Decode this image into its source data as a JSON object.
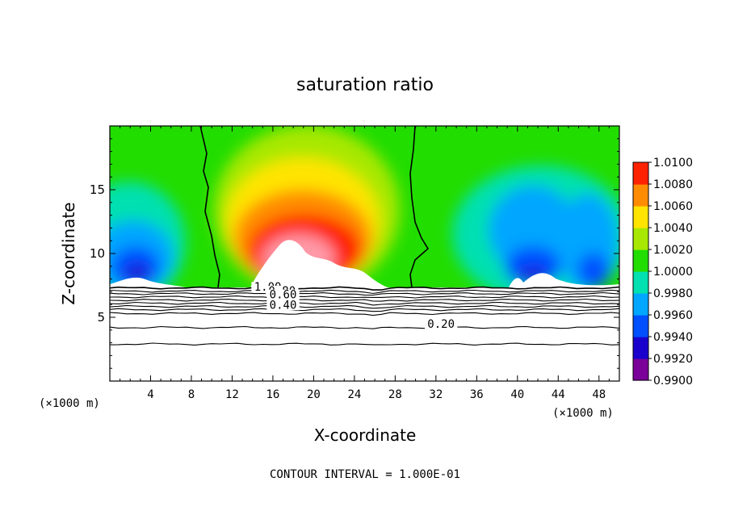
{
  "chart_data": {
    "type": "heatmap",
    "title": "saturation ratio",
    "xlabel": "X-coordinate",
    "ylabel": "Z-coordinate",
    "x_unit_label": "(×1000 m)",
    "y_unit_label": "(×1000 m)",
    "xlim": [
      0,
      50
    ],
    "ylim": [
      0,
      20
    ],
    "x_ticks": [
      4,
      8,
      12,
      16,
      20,
      24,
      28,
      32,
      36,
      40,
      44,
      48
    ],
    "y_ticks": [
      5,
      10,
      15
    ],
    "colorbar": {
      "min": 0.99,
      "max": 1.01,
      "tick_labels": [
        "0.9900",
        "0.9920",
        "0.9940",
        "0.9960",
        "0.9980",
        "1.0000",
        "1.0020",
        "1.0040",
        "1.0060",
        "1.0080",
        "1.0100"
      ],
      "colors": [
        "#7a0099",
        "#1a00cc",
        "#0050ff",
        "#00a6ff",
        "#00e0b0",
        "#22dd00",
        "#a8e800",
        "#ffe400",
        "#ff8c00",
        "#ff2200",
        "#ff9aa8"
      ]
    },
    "contour_interval": "CONTOUR INTERVAL = 1.000E-01",
    "contour_labels": [
      {
        "label": "1.00",
        "x": 15.5,
        "z": 7.2
      },
      {
        "label": "0.80",
        "x": 16.9,
        "z": 6.9
      },
      {
        "label": "0.60",
        "x": 17.0,
        "z": 6.6
      },
      {
        "label": "0.40",
        "x": 17.0,
        "z": 5.8
      },
      {
        "label": "0.20",
        "x": 32.5,
        "z": 4.3
      }
    ],
    "contour_levels": [
      0.2,
      0.4,
      0.6,
      0.8,
      1.0
    ],
    "features": {
      "cloud_base_z": 7.3,
      "unity_contour_left_x": 10.5,
      "unity_contour_right_x": 29.5,
      "supersaturated_core": {
        "x_range": [
          12,
          29
        ],
        "z_range": [
          7.3,
          16
        ],
        "peak_value": 1.01,
        "center_x": 20,
        "center_z": 12
      },
      "subsaturated_regions": [
        {
          "x_range": [
            0,
            8
          ],
          "z_center": 9.5,
          "min_value": 0.99
        },
        {
          "x_range": [
            33,
            50
          ],
          "z_center": 9.5,
          "min_value": 0.99
        }
      ]
    }
  },
  "colors": {
    "background": "#ffffff",
    "axis": "#000000",
    "contour": "#000000"
  }
}
